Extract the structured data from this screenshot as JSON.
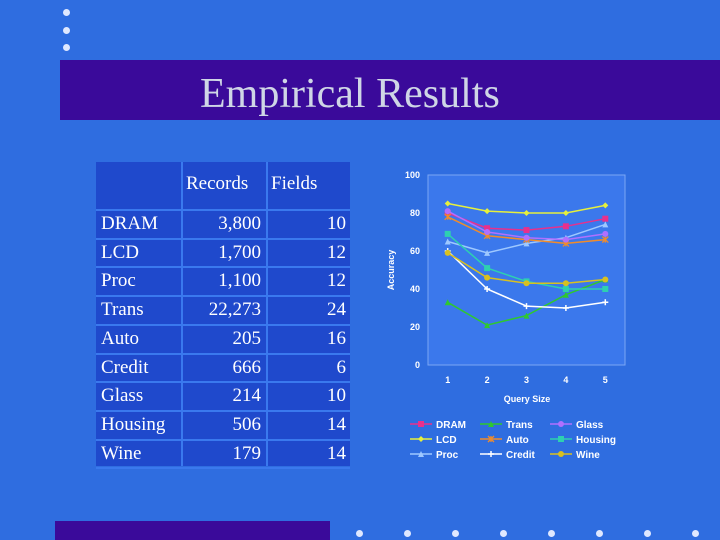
{
  "slide": {
    "title": "Empirical Results"
  },
  "colors": {
    "background": "#2f6de0",
    "band": "#3a0a9a",
    "table_bg": "#1f49cc"
  },
  "table": {
    "headers": [
      "",
      "Records",
      "Fields"
    ],
    "rows": [
      {
        "name": "DRAM",
        "records": "3,800",
        "fields": "10"
      },
      {
        "name": "LCD",
        "records": "1,700",
        "fields": "12"
      },
      {
        "name": "Proc",
        "records": "1,100",
        "fields": "12"
      },
      {
        "name": "Trans",
        "records": "22,273",
        "fields": "24"
      },
      {
        "name": "Auto",
        "records": "205",
        "fields": "16"
      },
      {
        "name": "Credit",
        "records": "666",
        "fields": "6"
      },
      {
        "name": "Glass",
        "records": "214",
        "fields": "10"
      },
      {
        "name": "Housing",
        "records": "506",
        "fields": "14"
      },
      {
        "name": "Wine",
        "records": "179",
        "fields": "14"
      }
    ]
  },
  "chart_data": {
    "type": "line",
    "xlabel": "Query Size",
    "ylabel": "Accuracy",
    "x": [
      1,
      2,
      3,
      4,
      5
    ],
    "xlim": [
      0.5,
      5.5
    ],
    "ylim": [
      0,
      100
    ],
    "yticks": [
      0,
      20,
      40,
      60,
      80,
      100
    ],
    "grid": false,
    "legend_position": "bottom",
    "series": [
      {
        "name": "DRAM",
        "color": "#e8308c",
        "marker": "square",
        "values": [
          80,
          72,
          71,
          73,
          77
        ]
      },
      {
        "name": "LCD",
        "color": "#e6f03c",
        "marker": "diamond",
        "values": [
          85,
          81,
          80,
          80,
          84
        ]
      },
      {
        "name": "Proc",
        "color": "#9ec8ff",
        "marker": "triangle",
        "values": [
          65,
          59,
          64,
          67,
          74
        ]
      },
      {
        "name": "Trans",
        "color": "#2fc82f",
        "marker": "triangle",
        "values": [
          33,
          21,
          26,
          37,
          45
        ]
      },
      {
        "name": "Auto",
        "color": "#f08c2c",
        "marker": "star",
        "values": [
          78,
          68,
          66,
          64,
          66
        ]
      },
      {
        "name": "Credit",
        "color": "#ffffff",
        "marker": "plus",
        "values": [
          60,
          40,
          31,
          30,
          33
        ]
      },
      {
        "name": "Glass",
        "color": "#b070ff",
        "marker": "circle",
        "values": [
          81,
          70,
          67,
          66,
          69
        ]
      },
      {
        "name": "Housing",
        "color": "#2ed0b0",
        "marker": "square",
        "values": [
          69,
          51,
          44,
          40,
          40
        ]
      },
      {
        "name": "Wine",
        "color": "#d8c020",
        "marker": "circle",
        "values": [
          59,
          46,
          43,
          43,
          45
        ]
      }
    ]
  }
}
